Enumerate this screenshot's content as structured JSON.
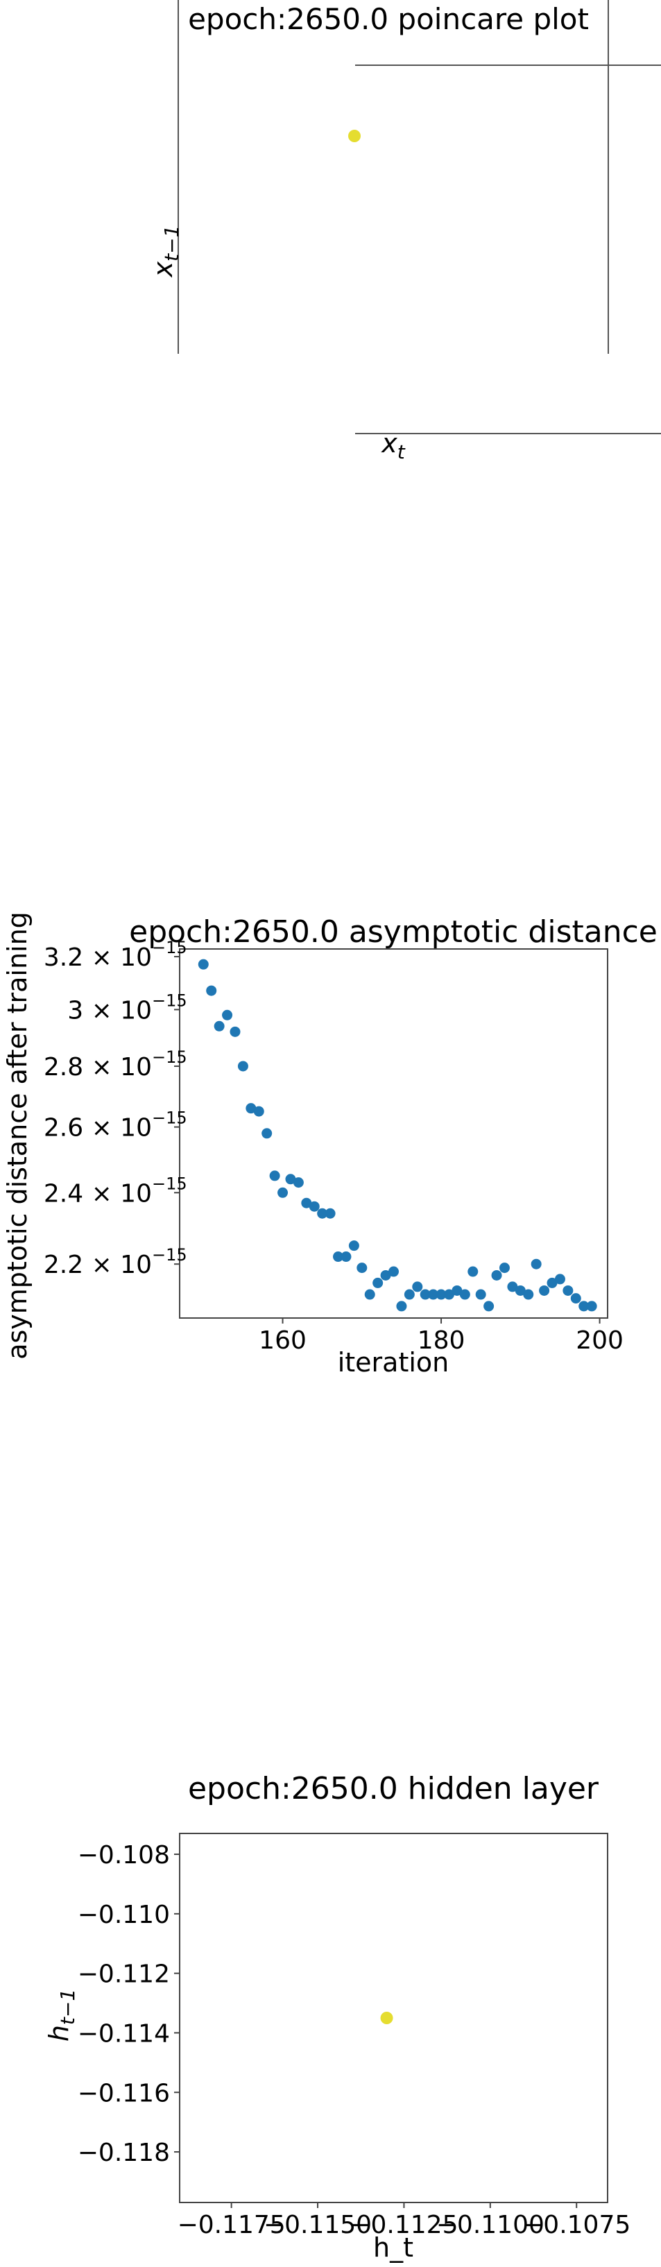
{
  "chart_data": [
    {
      "type": "scatter",
      "title": "epoch:2650.0 poincare plot",
      "xlabel": "x_t",
      "ylabel": "x_{t-1}",
      "points": [
        {
          "x": 0,
          "y": 0
        }
      ],
      "point_color": "#e5dd30",
      "grid": false
    },
    {
      "type": "scatter",
      "title": "epoch:2650.0 asymptotic distance",
      "xlabel": "iteration",
      "ylabel": "asymptotic distance after training",
      "y_scale": "log",
      "xlim": [
        147,
        201
      ],
      "ylim": [
        2.06e-15,
        3.23e-15
      ],
      "x_ticks": [
        {
          "value": 160,
          "label": "160"
        },
        {
          "value": 180,
          "label": "180"
        },
        {
          "value": 200,
          "label": "200"
        }
      ],
      "y_ticks": [
        {
          "value": 3.2e-15,
          "label": "3.2 × 10",
          "exp": "−15"
        },
        {
          "value": 3e-15,
          "label": "3 × 10",
          "exp": "−15"
        },
        {
          "value": 2.8e-15,
          "label": "2.8 × 10",
          "exp": "−15"
        },
        {
          "value": 2.6e-15,
          "label": "2.6 × 10",
          "exp": "−15"
        },
        {
          "value": 2.4e-15,
          "label": "2.4 × 10",
          "exp": "−15"
        },
        {
          "value": 2.2e-15,
          "label": "2.2 × 10",
          "exp": "−15"
        }
      ],
      "series": [
        {
          "color": "#1f77b4",
          "x": [
            150,
            151,
            152,
            153,
            154,
            155,
            156,
            157,
            158,
            159,
            160,
            161,
            162,
            163,
            164,
            165,
            166,
            167,
            168,
            169,
            170,
            171,
            172,
            173,
            174,
            175,
            176,
            177,
            178,
            179,
            180,
            181,
            182,
            183,
            184,
            185,
            186,
            187,
            188,
            189,
            190,
            191,
            192,
            193,
            194,
            195,
            196,
            197,
            198,
            199
          ],
          "y": [
            3.17e-15,
            3.07e-15,
            2.94e-15,
            2.98e-15,
            2.92e-15,
            2.8e-15,
            2.66e-15,
            2.65e-15,
            2.58e-15,
            2.45e-15,
            2.4e-15,
            2.44e-15,
            2.43e-15,
            2.37e-15,
            2.36e-15,
            2.34e-15,
            2.34e-15,
            2.22e-15,
            2.22e-15,
            2.25e-15,
            2.19e-15,
            2.12e-15,
            2.15e-15,
            2.17e-15,
            2.18e-15,
            2.09e-15,
            2.12e-15,
            2.14e-15,
            2.12e-15,
            2.12e-15,
            2.12e-15,
            2.12e-15,
            2.13e-15,
            2.12e-15,
            2.18e-15,
            2.12e-15,
            2.09e-15,
            2.17e-15,
            2.19e-15,
            2.14e-15,
            2.13e-15,
            2.12e-15,
            2.2e-15,
            2.13e-15,
            2.15e-15,
            2.16e-15,
            2.13e-15,
            2.11e-15,
            2.09e-15,
            2.09e-15
          ]
        }
      ]
    },
    {
      "type": "scatter",
      "title": "epoch:2650.0 hidden layer",
      "xlabel": "h_t",
      "ylabel": "h_{t-1}",
      "xlim": [
        -0.119,
        -0.1066
      ],
      "ylim": [
        -0.1197,
        -0.1073
      ],
      "x_ticks": [
        {
          "value": -0.1175,
          "label": "−0.1175"
        },
        {
          "value": -0.115,
          "label": "−0.1150"
        },
        {
          "value": -0.1125,
          "label": "−0.1125"
        },
        {
          "value": -0.11,
          "label": "−0.1100"
        },
        {
          "value": -0.1075,
          "label": "−0.1075"
        }
      ],
      "y_ticks": [
        {
          "value": -0.108,
          "label": "−0.108"
        },
        {
          "value": -0.11,
          "label": "−0.110"
        },
        {
          "value": -0.112,
          "label": "−0.112"
        },
        {
          "value": -0.114,
          "label": "−0.114"
        },
        {
          "value": -0.116,
          "label": "−0.116"
        },
        {
          "value": -0.118,
          "label": "−0.118"
        }
      ],
      "points": [
        {
          "x": -0.113,
          "y": -0.1135
        }
      ],
      "point_color": "#e5dd30",
      "grid": false
    }
  ]
}
